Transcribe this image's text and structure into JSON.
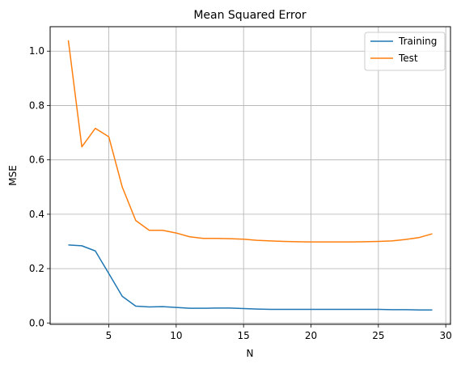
{
  "chart_data": {
    "type": "line",
    "title": "Mean Squared Error",
    "xlabel": "N",
    "ylabel": "MSE",
    "xlim": [
      0.65,
      30.35
    ],
    "ylim": [
      -0.005,
      1.09
    ],
    "xticks": [
      5,
      10,
      15,
      20,
      25,
      30
    ],
    "yticks": [
      0.0,
      0.2,
      0.4,
      0.6,
      0.8,
      1.0
    ],
    "xtick_labels": [
      "5",
      "10",
      "15",
      "20",
      "25",
      "30"
    ],
    "ytick_labels": [
      "0.0",
      "0.2",
      "0.4",
      "0.6",
      "0.8",
      "1.0"
    ],
    "grid": true,
    "legend_position": "top-right",
    "x": [
      2,
      3,
      4,
      5,
      6,
      7,
      8,
      9,
      10,
      11,
      12,
      13,
      14,
      15,
      16,
      17,
      18,
      19,
      20,
      21,
      22,
      23,
      24,
      25,
      26,
      27,
      28,
      29
    ],
    "series": [
      {
        "name": "Training",
        "color": "#1f77b4",
        "values": [
          0.287,
          0.284,
          0.265,
          0.182,
          0.098,
          0.062,
          0.059,
          0.06,
          0.057,
          0.054,
          0.054,
          0.055,
          0.055,
          0.053,
          0.051,
          0.05,
          0.05,
          0.05,
          0.05,
          0.05,
          0.05,
          0.05,
          0.05,
          0.05,
          0.049,
          0.049,
          0.048,
          0.048
        ]
      },
      {
        "name": "Test",
        "color": "#ff7f0e",
        "values": [
          1.04,
          0.648,
          0.716,
          0.685,
          0.5,
          0.377,
          0.341,
          0.341,
          0.331,
          0.317,
          0.311,
          0.311,
          0.31,
          0.308,
          0.304,
          0.302,
          0.3,
          0.299,
          0.298,
          0.298,
          0.298,
          0.298,
          0.299,
          0.3,
          0.302,
          0.307,
          0.314,
          0.328
        ]
      }
    ]
  }
}
